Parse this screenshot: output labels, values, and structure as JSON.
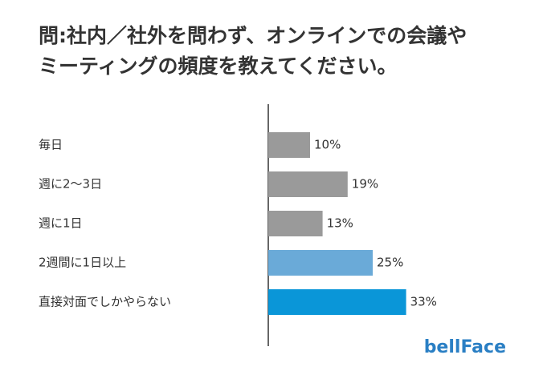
{
  "chart_data": {
    "type": "bar",
    "orientation": "horizontal",
    "title": [
      "問:社内／社外を問わず、オンラインでの会議や",
      "ミーティングの頻度を教えてください。"
    ],
    "categories": [
      "毎日",
      "週に2〜3日",
      "週に1日",
      "2週間に1日以上",
      "直接対面でしかやらない"
    ],
    "values": [
      10,
      19,
      13,
      25,
      33
    ],
    "value_labels": [
      "10%",
      "19%",
      "13%",
      "25%",
      "33%"
    ],
    "colors": [
      "#9a9a9a",
      "#9a9a9a",
      "#9a9a9a",
      "#6aaad8",
      "#0a96d8"
    ],
    "brand": "bellFace"
  }
}
